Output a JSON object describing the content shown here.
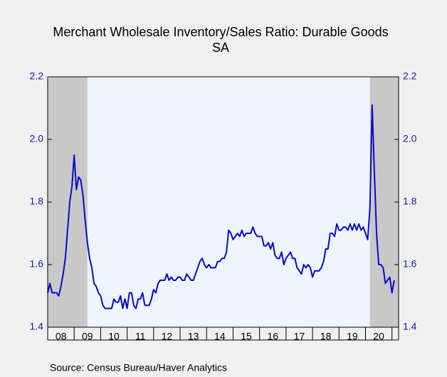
{
  "chart_data": {
    "type": "line",
    "title": "Merchant Wholesale Inventory/Sales Ratio: Durable Goods",
    "subtitle": "SA",
    "source": "Source:  Census Bureau/Haver Analytics",
    "color": "#0a0ac8",
    "xlim": [
      2008,
      2021.25
    ],
    "xticks": [
      2009,
      2010,
      2011,
      2012,
      2013,
      2014,
      2015,
      2016,
      2017,
      2018,
      2019,
      2020,
      2021
    ],
    "xtick_labels": [
      {
        "value": 2008.5,
        "label": "08"
      },
      {
        "value": 2009.5,
        "label": "09"
      },
      {
        "value": 2010.5,
        "label": "10"
      },
      {
        "value": 2011.5,
        "label": "11"
      },
      {
        "value": 2012.5,
        "label": "12"
      },
      {
        "value": 2013.5,
        "label": "13"
      },
      {
        "value": 2014.5,
        "label": "14"
      },
      {
        "value": 2015.5,
        "label": "15"
      },
      {
        "value": 2016.5,
        "label": "16"
      },
      {
        "value": 2017.5,
        "label": "17"
      },
      {
        "value": 2018.5,
        "label": "18"
      },
      {
        "value": 2019.5,
        "label": "19"
      },
      {
        "value": 2020.5,
        "label": "20"
      }
    ],
    "ylim": [
      1.4,
      2.2
    ],
    "yticks": [
      2.2,
      {
        "value": 2,
        "label": "2.0"
      },
      1.8,
      1.6,
      1.4
    ],
    "shading": [
      [
        2008,
        2009.5
      ],
      [
        2020.167,
        2021.25
      ]
    ],
    "x": [
      2008,
      2008.083,
      2008.167,
      2008.25,
      2008.333,
      2008.417,
      2008.5,
      2008.583,
      2008.667,
      2008.75,
      2008.833,
      2008.917,
      2009,
      2009.083,
      2009.167,
      2009.25,
      2009.333,
      2009.417,
      2009.5,
      2009.583,
      2009.667,
      2009.75,
      2009.833,
      2009.917,
      2010,
      2010.083,
      2010.167,
      2010.25,
      2010.333,
      2010.417,
      2010.5,
      2010.583,
      2010.667,
      2010.75,
      2010.833,
      2010.917,
      2011,
      2011.083,
      2011.167,
      2011.25,
      2011.333,
      2011.417,
      2011.5,
      2011.583,
      2011.667,
      2011.75,
      2011.833,
      2011.917,
      2012,
      2012.083,
      2012.167,
      2012.25,
      2012.333,
      2012.417,
      2012.5,
      2012.583,
      2012.667,
      2012.75,
      2012.833,
      2012.917,
      2013,
      2013.083,
      2013.167,
      2013.25,
      2013.333,
      2013.417,
      2013.5,
      2013.583,
      2013.667,
      2013.75,
      2013.833,
      2013.917,
      2014,
      2014.083,
      2014.167,
      2014.25,
      2014.333,
      2014.417,
      2014.5,
      2014.583,
      2014.667,
      2014.75,
      2014.833,
      2014.917,
      2015,
      2015.083,
      2015.167,
      2015.25,
      2015.333,
      2015.417,
      2015.5,
      2015.583,
      2015.667,
      2015.75,
      2015.833,
      2015.917,
      2016,
      2016.083,
      2016.167,
      2016.25,
      2016.333,
      2016.417,
      2016.5,
      2016.583,
      2016.667,
      2016.75,
      2016.833,
      2016.917,
      2017,
      2017.083,
      2017.167,
      2017.25,
      2017.333,
      2017.417,
      2017.5,
      2017.583,
      2017.667,
      2017.75,
      2017.833,
      2017.917,
      2018,
      2018.083,
      2018.167,
      2018.25,
      2018.333,
      2018.417,
      2018.5,
      2018.583,
      2018.667,
      2018.75,
      2018.833,
      2018.917,
      2019,
      2019.083,
      2019.167,
      2019.25,
      2019.333,
      2019.417,
      2019.5,
      2019.583,
      2019.667,
      2019.75,
      2019.833,
      2019.917,
      2020,
      2020.083,
      2020.167,
      2020.25,
      2020.333,
      2020.417,
      2020.5,
      2020.583,
      2020.667,
      2020.75,
      2020.833,
      2020.917,
      2021,
      2021.083
    ],
    "values": [
      1.51,
      1.54,
      1.51,
      1.51,
      1.51,
      1.5,
      1.53,
      1.57,
      1.62,
      1.71,
      1.8,
      1.85,
      1.95,
      1.84,
      1.88,
      1.87,
      1.82,
      1.74,
      1.67,
      1.62,
      1.59,
      1.54,
      1.53,
      1.51,
      1.5,
      1.47,
      1.46,
      1.46,
      1.46,
      1.46,
      1.49,
      1.48,
      1.48,
      1.5,
      1.46,
      1.49,
      1.46,
      1.51,
      1.51,
      1.47,
      1.46,
      1.49,
      1.49,
      1.51,
      1.47,
      1.47,
      1.47,
      1.49,
      1.52,
      1.51,
      1.54,
      1.55,
      1.55,
      1.55,
      1.57,
      1.55,
      1.56,
      1.55,
      1.55,
      1.56,
      1.56,
      1.55,
      1.55,
      1.57,
      1.56,
      1.55,
      1.55,
      1.57,
      1.59,
      1.61,
      1.62,
      1.6,
      1.59,
      1.6,
      1.59,
      1.59,
      1.59,
      1.61,
      1.61,
      1.62,
      1.62,
      1.64,
      1.71,
      1.7,
      1.68,
      1.69,
      1.7,
      1.69,
      1.71,
      1.69,
      1.7,
      1.7,
      1.7,
      1.72,
      1.7,
      1.69,
      1.69,
      1.69,
      1.66,
      1.66,
      1.67,
      1.65,
      1.67,
      1.63,
      1.62,
      1.62,
      1.64,
      1.6,
      1.62,
      1.63,
      1.64,
      1.62,
      1.62,
      1.59,
      1.58,
      1.57,
      1.6,
      1.59,
      1.6,
      1.59,
      1.56,
      1.58,
      1.58,
      1.58,
      1.59,
      1.61,
      1.65,
      1.65,
      1.7,
      1.7,
      1.69,
      1.73,
      1.71,
      1.71,
      1.72,
      1.72,
      1.71,
      1.73,
      1.71,
      1.73,
      1.71,
      1.73,
      1.71,
      1.72,
      1.7,
      1.68,
      1.78,
      2.11,
      1.9,
      1.7,
      1.6,
      1.6,
      1.59,
      1.54,
      1.55,
      1.56,
      1.51,
      1.55
    ]
  }
}
